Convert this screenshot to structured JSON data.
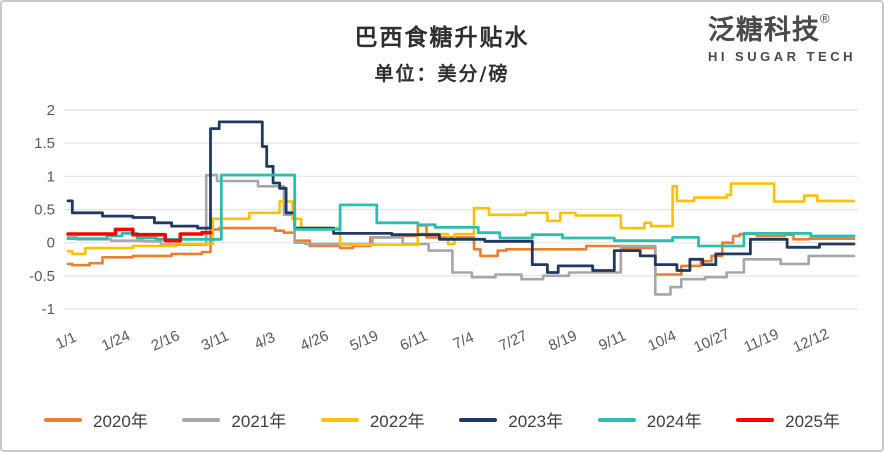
{
  "header": {
    "title": "巴西食糖升贴水",
    "subtitle": "单位：美分/磅"
  },
  "logo": {
    "name": "泛糖科技",
    "registered": "®",
    "subtitle": "HI SUGAR TECH"
  },
  "chart_data": {
    "type": "line",
    "title": "巴西食糖升贴水",
    "unit_label": "单位：美分/磅",
    "xlabel": "",
    "ylabel": "",
    "ylim": [
      -1,
      2
    ],
    "y_ticks": [
      2,
      1.5,
      1,
      0.5,
      0,
      -0.5,
      -1
    ],
    "x_range_days": [
      0,
      364
    ],
    "x_ticks": {
      "days": [
        0,
        23,
        46,
        69,
        92,
        115,
        138,
        161,
        184,
        207,
        230,
        253,
        276,
        299,
        322,
        345
      ],
      "labels": [
        "1/1",
        "1/24",
        "2/16",
        "3/11",
        "4/3",
        "4/26",
        "5/19",
        "6/11",
        "7/4",
        "7/27",
        "8/19",
        "9/11",
        "10/4",
        "10/27",
        "11/19",
        "12/12"
      ]
    },
    "grid": "horizontal",
    "legend_position": "bottom",
    "grid_color": "#e4e4e4",
    "axis_label_color": "#595959",
    "series": [
      {
        "name": "2020年",
        "color": "#ED7D31",
        "width": 2.6,
        "points": [
          [
            0,
            -0.32
          ],
          [
            2,
            -0.34
          ],
          [
            10,
            -0.31
          ],
          [
            16,
            -0.22
          ],
          [
            30,
            -0.2
          ],
          [
            48,
            -0.17
          ],
          [
            62,
            -0.14
          ],
          [
            66,
            0.2
          ],
          [
            70,
            0.22
          ],
          [
            96,
            0.18
          ],
          [
            100,
            0.15
          ],
          [
            105,
            0.03
          ],
          [
            112,
            -0.05
          ],
          [
            126,
            -0.08
          ],
          [
            132,
            -0.05
          ],
          [
            140,
            0.08
          ],
          [
            150,
            0.1
          ],
          [
            162,
            0.26
          ],
          [
            166,
            0.08
          ],
          [
            188,
            -0.1
          ],
          [
            191,
            -0.2
          ],
          [
            199,
            -0.12
          ],
          [
            203,
            -0.1
          ],
          [
            240,
            -0.05
          ],
          [
            256,
            -0.08
          ],
          [
            272,
            -0.48
          ],
          [
            284,
            -0.35
          ],
          [
            293,
            -0.28
          ],
          [
            298,
            -0.2
          ],
          [
            303,
            0.0
          ],
          [
            308,
            0.1
          ],
          [
            311,
            0.13
          ],
          [
            319,
            0.1
          ],
          [
            332,
            0.12
          ],
          [
            336,
            0.05
          ],
          [
            343,
            0.06
          ],
          [
            364,
            0.06
          ]
        ]
      },
      {
        "name": "2021年",
        "color": "#A6A6A6",
        "width": 2.6,
        "points": [
          [
            0,
            0.08
          ],
          [
            4,
            0.05
          ],
          [
            20,
            0.03
          ],
          [
            35,
            0.02
          ],
          [
            43,
            -0.03
          ],
          [
            64,
            1.02
          ],
          [
            69,
            0.93
          ],
          [
            88,
            0.85
          ],
          [
            100,
            0.42
          ],
          [
            105,
            0.0
          ],
          [
            110,
            -0.02
          ],
          [
            141,
            0.08
          ],
          [
            155,
            -0.02
          ],
          [
            167,
            -0.12
          ],
          [
            178,
            -0.45
          ],
          [
            187,
            -0.52
          ],
          [
            198,
            -0.48
          ],
          [
            210,
            -0.55
          ],
          [
            220,
            -0.5
          ],
          [
            232,
            -0.45
          ],
          [
            256,
            -0.05
          ],
          [
            272,
            -0.78
          ],
          [
            279,
            -0.67
          ],
          [
            284,
            -0.55
          ],
          [
            295,
            -0.52
          ],
          [
            305,
            -0.45
          ],
          [
            313,
            -0.25
          ],
          [
            330,
            -0.32
          ],
          [
            343,
            -0.2
          ],
          [
            364,
            -0.2
          ]
        ]
      },
      {
        "name": "2022年",
        "color": "#FFC000",
        "width": 2.6,
        "points": [
          [
            0,
            -0.13
          ],
          [
            2,
            -0.17
          ],
          [
            8,
            -0.08
          ],
          [
            30,
            -0.05
          ],
          [
            50,
            -0.02
          ],
          [
            67,
            0.36
          ],
          [
            84,
            0.45
          ],
          [
            98,
            0.62
          ],
          [
            104,
            0.36
          ],
          [
            108,
            0.22
          ],
          [
            126,
            -0.03
          ],
          [
            162,
            0.13
          ],
          [
            176,
            -0.02
          ],
          [
            179,
            0.13
          ],
          [
            188,
            0.52
          ],
          [
            195,
            0.42
          ],
          [
            212,
            0.45
          ],
          [
            222,
            0.33
          ],
          [
            228,
            0.45
          ],
          [
            235,
            0.41
          ],
          [
            256,
            0.22
          ],
          [
            267,
            0.3
          ],
          [
            270,
            0.25
          ],
          [
            280,
            0.85
          ],
          [
            282,
            0.63
          ],
          [
            290,
            0.68
          ],
          [
            305,
            0.72
          ],
          [
            307,
            0.89
          ],
          [
            327,
            0.62
          ],
          [
            341,
            0.71
          ],
          [
            347,
            0.63
          ],
          [
            364,
            0.63
          ]
        ]
      },
      {
        "name": "2023年",
        "color": "#1F3864",
        "width": 2.8,
        "points": [
          [
            0,
            0.63
          ],
          [
            2,
            0.45
          ],
          [
            16,
            0.4
          ],
          [
            30,
            0.38
          ],
          [
            40,
            0.3
          ],
          [
            48,
            0.25
          ],
          [
            60,
            0.22
          ],
          [
            66,
            1.72
          ],
          [
            70,
            1.82
          ],
          [
            90,
            1.45
          ],
          [
            92,
            1.15
          ],
          [
            95,
            0.9
          ],
          [
            98,
            0.82
          ],
          [
            101,
            0.45
          ],
          [
            105,
            0.22
          ],
          [
            123,
            0.14
          ],
          [
            150,
            0.12
          ],
          [
            172,
            0.05
          ],
          [
            193,
            0.02
          ],
          [
            215,
            -0.33
          ],
          [
            222,
            -0.45
          ],
          [
            227,
            -0.35
          ],
          [
            243,
            -0.42
          ],
          [
            253,
            -0.12
          ],
          [
            265,
            -0.2
          ],
          [
            272,
            -0.33
          ],
          [
            282,
            -0.42
          ],
          [
            288,
            -0.25
          ],
          [
            294,
            -0.33
          ],
          [
            300,
            -0.17
          ],
          [
            316,
            0.05
          ],
          [
            333,
            -0.07
          ],
          [
            348,
            -0.02
          ],
          [
            364,
            -0.02
          ]
        ]
      },
      {
        "name": "2024年",
        "color": "#2CBDB0",
        "width": 2.8,
        "points": [
          [
            0,
            0.06
          ],
          [
            18,
            0.1
          ],
          [
            25,
            0.14
          ],
          [
            32,
            0.07
          ],
          [
            41,
            0.05
          ],
          [
            71,
            1.02
          ],
          [
            105,
            0.2
          ],
          [
            126,
            0.57
          ],
          [
            143,
            0.3
          ],
          [
            162,
            0.27
          ],
          [
            170,
            0.23
          ],
          [
            190,
            0.15
          ],
          [
            200,
            0.07
          ],
          [
            215,
            0.12
          ],
          [
            229,
            0.07
          ],
          [
            253,
            0.03
          ],
          [
            280,
            0.08
          ],
          [
            292,
            -0.05
          ],
          [
            313,
            0.14
          ],
          [
            344,
            0.1
          ],
          [
            364,
            0.1
          ]
        ]
      },
      {
        "name": "2025年",
        "color": "#FF0000",
        "width": 3.6,
        "points": [
          [
            0,
            0.13
          ],
          [
            22,
            0.2
          ],
          [
            30,
            0.12
          ],
          [
            45,
            0.03
          ],
          [
            52,
            0.13
          ],
          [
            62,
            0.15
          ],
          [
            66,
            0.15
          ]
        ]
      }
    ]
  }
}
